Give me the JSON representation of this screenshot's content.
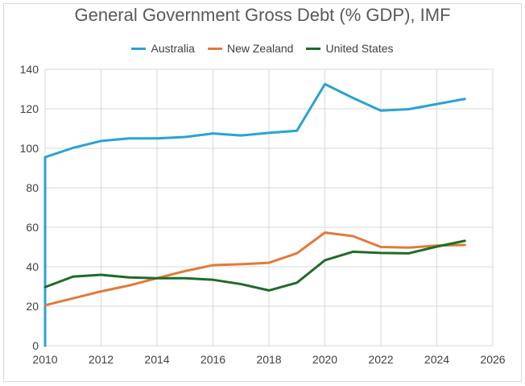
{
  "chart_data": {
    "type": "line",
    "title": "General Government Gross Debt (% GDP), IMF",
    "xlabel": "",
    "ylabel": "",
    "xlim": [
      2010,
      2026
    ],
    "ylim": [
      0,
      140
    ],
    "x_ticks": [
      2010,
      2012,
      2014,
      2016,
      2018,
      2020,
      2022,
      2024,
      2026
    ],
    "y_ticks": [
      0,
      20,
      40,
      60,
      80,
      100,
      120,
      140
    ],
    "x_tick_labels": [
      "2010",
      "2012",
      "2014",
      "2016",
      "2018",
      "2020",
      "2022",
      "2024",
      "2026"
    ],
    "y_tick_labels": [
      "0",
      "20",
      "40",
      "60",
      "80",
      "100",
      "120",
      "140"
    ],
    "grid": true,
    "legend_position": "top",
    "x": [
      2010,
      2011,
      2012,
      2013,
      2014,
      2015,
      2016,
      2017,
      2018,
      2019,
      2020,
      2021,
      2022,
      2023,
      2024,
      2025
    ],
    "series": [
      {
        "name": "Australia",
        "color": "#29a3d4",
        "values": [
          95.5,
          100.2,
          103.7,
          105,
          105,
          105.7,
          107.5,
          106.5,
          107.8,
          108.9,
          132.5,
          125.5,
          119.1,
          119.8,
          122.4,
          125
        ]
      },
      {
        "name": "New Zealand",
        "color": "#e07b39",
        "values": [
          20.5,
          24,
          27.5,
          30.5,
          34.2,
          37.8,
          40.8,
          41.3,
          42,
          46.8,
          57.3,
          55.5,
          50,
          49.7,
          50.7,
          51
        ]
      },
      {
        "name": "United States",
        "color": "#1f6b2a",
        "values": [
          29.7,
          35,
          35.9,
          34.6,
          34.2,
          34.2,
          33.4,
          31.2,
          28,
          31.9,
          43.3,
          47.6,
          47,
          46.8,
          50.2,
          53.1
        ]
      }
    ]
  }
}
